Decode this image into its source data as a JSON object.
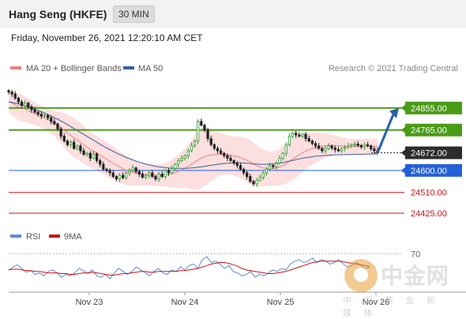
{
  "header": {
    "instrument": "Hang Seng (HKFE)",
    "interval": "30 MIN"
  },
  "subtitle": "Friday, November 26, 2021 12:20:10 AM CET",
  "legend": {
    "items": [
      {
        "label": "MA 20 + Bollinger Bands",
        "color": "#f08080"
      },
      {
        "label": "MA 50",
        "color": "#3a5f9e"
      }
    ],
    "copyright": "Research © 2021 Trading Central"
  },
  "rsi_legend": {
    "items": [
      {
        "label": "RSI",
        "color": "#5b8bd6"
      },
      {
        "label": "9MA",
        "color": "#d01010"
      }
    ]
  },
  "watermark": {
    "main": "中金网",
    "sub": "中 国 黄 金 新 媒 体"
  },
  "chart_data": [
    {
      "type": "candlestick",
      "title": "Hang Seng (HKFE)",
      "x_ticks": [
        "Nov 23",
        "Nov 24",
        "Nov 25",
        "Nov 26"
      ],
      "ylim": [
        24380,
        24935
      ],
      "price_levels": [
        {
          "value": 24855.0,
          "label": "24855.00",
          "kind": "resistance",
          "color": "#4a9c16"
        },
        {
          "value": 24765.0,
          "label": "24765.00",
          "kind": "resistance",
          "color": "#4a9c16"
        },
        {
          "value": 24672.0,
          "label": "24672.00",
          "kind": "last",
          "color": "#2c2c2c"
        },
        {
          "value": 24600.0,
          "label": "24600.00",
          "kind": "pivot",
          "color": "#2360d8"
        },
        {
          "value": 24510.0,
          "label": "24510.00",
          "kind": "support",
          "color": "#d01010"
        },
        {
          "value": 24425.0,
          "label": "24425.00",
          "kind": "support",
          "color": "#d01010"
        }
      ],
      "close": [
        24920,
        24912,
        24895,
        24880,
        24865,
        24875,
        24860,
        24848,
        24838,
        24830,
        24822,
        24825,
        24815,
        24800,
        24790,
        24770,
        24740,
        24720,
        24705,
        24715,
        24690,
        24700,
        24680,
        24665,
        24670,
        24650,
        24668,
        24640,
        24625,
        24605,
        24600,
        24590,
        24575,
        24565,
        24580,
        24570,
        24590,
        24600,
        24610,
        24595,
        24585,
        24572,
        24580,
        24590,
        24575,
        24565,
        24585,
        24575,
        24600,
        24590,
        24608,
        24625,
        24640,
        24650,
        24660,
        24680,
        24702,
        24720,
        24800,
        24785,
        24765,
        24730,
        24705,
        24690,
        24680,
        24670,
        24660,
        24650,
        24640,
        24630,
        24620,
        24605,
        24590,
        24575,
        24555,
        24545,
        24560,
        24572,
        24590,
        24605,
        24620,
        24615,
        24630,
        24650,
        24670,
        24705,
        24740,
        24752,
        24745,
        24740,
        24748,
        24730,
        24720,
        24710,
        24700,
        24690,
        24680,
        24690,
        24700,
        24692,
        24685,
        24680,
        24690,
        24694,
        24700,
        24705,
        24708,
        24702,
        24696,
        24705,
        24700,
        24688,
        24680,
        24672
      ],
      "ma20": [
        24880,
        24875,
        24868,
        24860,
        24855,
        24850,
        24844,
        24838,
        24832,
        24826,
        24820,
        24814,
        24808,
        24800,
        24792,
        24783,
        24774,
        24764,
        24753,
        24743,
        24733,
        24724,
        24714,
        24704,
        24695,
        24686,
        24678,
        24670,
        24662,
        24654,
        24646,
        24638,
        24630,
        24622,
        24614,
        24607,
        24600,
        24595,
        24592,
        24589,
        24586,
        24584,
        24583,
        24582,
        24581,
        24580,
        24580,
        24581,
        24582,
        24584,
        24587,
        24591,
        24596,
        24602,
        24609,
        24617,
        24625,
        24634,
        24642,
        24650,
        24656,
        24660,
        24663,
        24665,
        24666,
        24666,
        24665,
        24664,
        24662,
        24659,
        24656,
        24652,
        24647,
        24641,
        24634,
        24626,
        24619,
        24614,
        24610,
        24608,
        24607,
        24608,
        24610,
        24614,
        24620,
        24628,
        24637,
        24646,
        24655,
        24664,
        24672,
        24679,
        24685,
        24690,
        24694,
        24697,
        24699,
        24701,
        24702,
        24702,
        24702,
        24701,
        24700,
        24699,
        24698,
        24698,
        24698,
        24698,
        24698,
        24699,
        24699,
        24699,
        24698,
        24697
      ],
      "bb_width": [
        45,
        48,
        52,
        55,
        55,
        52,
        50,
        48,
        46,
        45,
        44,
        44,
        45,
        48,
        52,
        58,
        64,
        70,
        75,
        78,
        80,
        80,
        78,
        76,
        74,
        72,
        70,
        70,
        70,
        70,
        70,
        70,
        68,
        66,
        64,
        62,
        60,
        57,
        54,
        50,
        48,
        46,
        45,
        44,
        44,
        44,
        45,
        46,
        48,
        52,
        56,
        62,
        68,
        74,
        80,
        90,
        100,
        112,
        120,
        122,
        120,
        115,
        108,
        100,
        92,
        86,
        82,
        80,
        80,
        80,
        82,
        85,
        88,
        90,
        90,
        88,
        84,
        80,
        76,
        72,
        70,
        70,
        72,
        75,
        78,
        82,
        85,
        86,
        85,
        82,
        78,
        74,
        70,
        66,
        62,
        58,
        54,
        50,
        46,
        43,
        40,
        38,
        36,
        34,
        33,
        32,
        32,
        31,
        31,
        31,
        31,
        31,
        31,
        31
      ],
      "ma50": [
        24880,
        24878,
        24875,
        24872,
        24868,
        24864,
        24860,
        24855,
        24850,
        24845,
        24840,
        24834,
        24828,
        24822,
        24816,
        24809,
        24802,
        24795,
        24787,
        24779,
        24771,
        24763,
        24755,
        24747,
        24739,
        24731,
        24723,
        24715,
        24707,
        24699,
        24692,
        24685,
        24678,
        24671,
        24665,
        24659,
        24653,
        24648,
        24643,
        24638,
        24634,
        24630,
        24626,
        24623,
        24620,
        24617,
        24615,
        24613,
        24611,
        24610,
        24609,
        24608,
        24608,
        24608,
        24608,
        24609,
        24610,
        24611,
        24613,
        24615,
        24617,
        24619,
        24621,
        24623,
        24625,
        24627,
        24628,
        24629,
        24630,
        24631,
        24631,
        24631,
        24630,
        24629,
        24628,
        24627,
        24626,
        24625,
        24625,
        24625,
        24626,
        24627,
        24628,
        24630,
        24632,
        24635,
        24638,
        24641,
        24644,
        24647,
        24650,
        24652,
        24654,
        24656,
        24658,
        24659,
        24660,
        24661,
        24662,
        24663,
        24663,
        24664,
        24664,
        24665,
        24665,
        24665,
        24666,
        24666,
        24666,
        24666,
        24667,
        24667,
        24667,
        24667
      ]
    },
    {
      "type": "line",
      "title": "RSI",
      "yticks": [
        70
      ],
      "ylim": [
        20,
        80
      ],
      "series": [
        {
          "name": "RSI",
          "color": "#5b8bd6",
          "values": [
            48,
            52,
            55,
            50,
            45,
            47,
            42,
            44,
            40,
            46,
            48,
            44,
            38,
            42,
            40,
            44,
            50,
            47,
            43,
            48,
            40,
            38,
            42,
            36,
            44,
            50,
            46,
            42,
            46,
            52,
            48,
            44,
            40,
            46,
            50,
            44,
            42,
            48,
            46,
            52,
            48,
            54,
            56,
            50,
            62,
            66,
            58,
            60,
            56,
            50,
            54,
            46,
            44,
            40,
            42,
            46,
            38,
            42,
            40,
            44,
            48,
            46,
            50,
            48,
            56,
            60,
            62,
            58,
            60,
            64,
            58,
            62,
            60,
            56,
            58,
            62,
            56,
            52,
            54,
            58,
            54,
            50,
            52
          ]
        },
        {
          "name": "9MA",
          "color": "#d01010",
          "values": [
            48,
            49,
            49,
            48,
            47,
            47,
            46,
            46,
            45,
            44,
            44,
            44,
            43,
            43,
            42,
            42,
            43,
            44,
            44,
            45,
            44,
            43,
            42,
            41,
            41,
            42,
            43,
            43,
            44,
            45,
            46,
            46,
            45,
            45,
            46,
            46,
            46,
            46,
            46,
            47,
            47,
            48,
            49,
            50,
            52,
            54,
            56,
            57,
            58,
            58,
            57,
            55,
            53,
            50,
            48,
            47,
            46,
            45,
            44,
            43,
            43,
            44,
            45,
            46,
            48,
            50,
            52,
            54,
            56,
            58,
            59,
            60,
            60,
            60,
            60,
            60,
            59,
            58,
            57,
            56,
            55,
            54,
            53
          ]
        }
      ]
    }
  ]
}
